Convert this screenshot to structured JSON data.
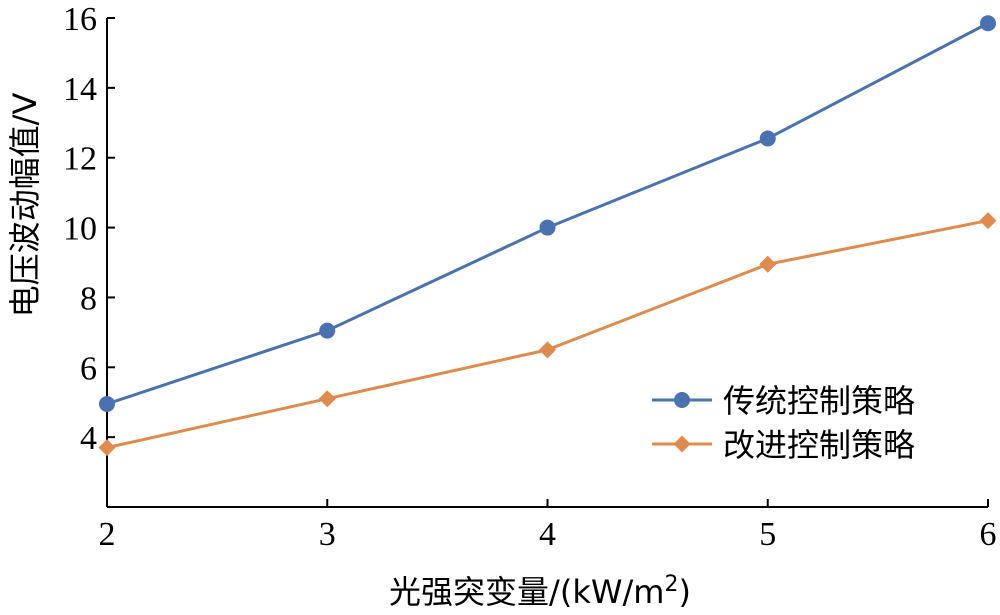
{
  "chart_data": {
    "type": "line",
    "xlabel_text": "光强突变量/(kW/m",
    "xlabel_sup": "2",
    "xlabel_close": ")",
    "ylabel": "电压波动幅值/V",
    "x": [
      2,
      3,
      4,
      5,
      6
    ],
    "xlim": [
      2,
      6
    ],
    "ylim": [
      2,
      16
    ],
    "xticks": [
      "2",
      "3",
      "4",
      "5",
      "6"
    ],
    "yticks": [
      "4",
      "6",
      "8",
      "10",
      "12",
      "14",
      "16"
    ],
    "grid": false,
    "legend_position": "bottom-right",
    "series": [
      {
        "name": "传统控制策略",
        "values": [
          4.95,
          7.05,
          10.0,
          12.55,
          15.85
        ],
        "color": "#4a72b0",
        "marker": "circle"
      },
      {
        "name": "改进控制策略",
        "values": [
          3.7,
          5.1,
          6.5,
          8.95,
          10.2
        ],
        "color": "#e08a4b",
        "marker": "diamond"
      }
    ]
  }
}
